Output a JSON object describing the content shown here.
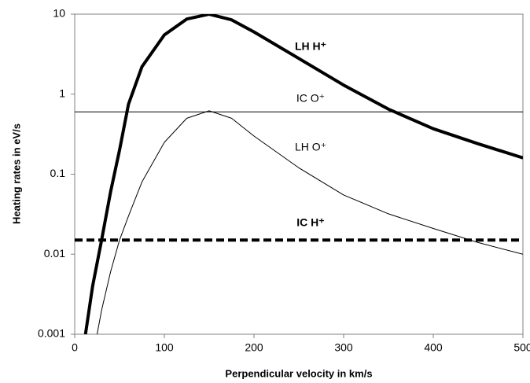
{
  "chart_data": {
    "type": "line",
    "xlabel": "Perpendicular velocity in km/s",
    "ylabel": "Heating rates in eV/s",
    "xlim": [
      0,
      500
    ],
    "xticks": [
      0,
      100,
      200,
      300,
      400,
      500
    ],
    "ylim": [
      0.001,
      10
    ],
    "yticks": [
      0.001,
      0.01,
      0.1,
      1,
      10
    ],
    "log_y": true,
    "grid": false,
    "series": [
      {
        "name": "LH H⁺",
        "color": "#000000",
        "width": 4,
        "dash": false,
        "bold": true,
        "x": [
          12,
          20,
          30,
          40,
          50,
          60,
          75,
          100,
          125,
          150,
          175,
          200,
          250,
          300,
          350,
          400,
          450,
          500
        ],
        "values": [
          0.001,
          0.004,
          0.015,
          0.06,
          0.2,
          0.75,
          2.2,
          5.5,
          8.7,
          10,
          8.5,
          6,
          2.8,
          1.3,
          0.65,
          0.37,
          0.24,
          0.16
        ]
      },
      {
        "name": "IC O⁺",
        "color": "#000000",
        "width": 1,
        "dash": false,
        "bold": false,
        "x": [
          0,
          500
        ],
        "values": [
          0.6,
          0.6
        ]
      },
      {
        "name": "LH O⁺",
        "color": "#000000",
        "width": 1,
        "dash": false,
        "bold": false,
        "x": [
          25,
          30,
          40,
          50,
          60,
          75,
          100,
          125,
          150,
          175,
          200,
          250,
          300,
          350,
          400,
          450,
          500
        ],
        "values": [
          0.001,
          0.002,
          0.006,
          0.015,
          0.03,
          0.08,
          0.25,
          0.5,
          0.62,
          0.5,
          0.3,
          0.12,
          0.055,
          0.032,
          0.021,
          0.014,
          0.01
        ]
      },
      {
        "name": "IC H⁺",
        "color": "#000000",
        "width": 4,
        "dash": true,
        "bold": true,
        "x": [
          0,
          500
        ],
        "values": [
          0.015,
          0.015
        ]
      }
    ]
  }
}
